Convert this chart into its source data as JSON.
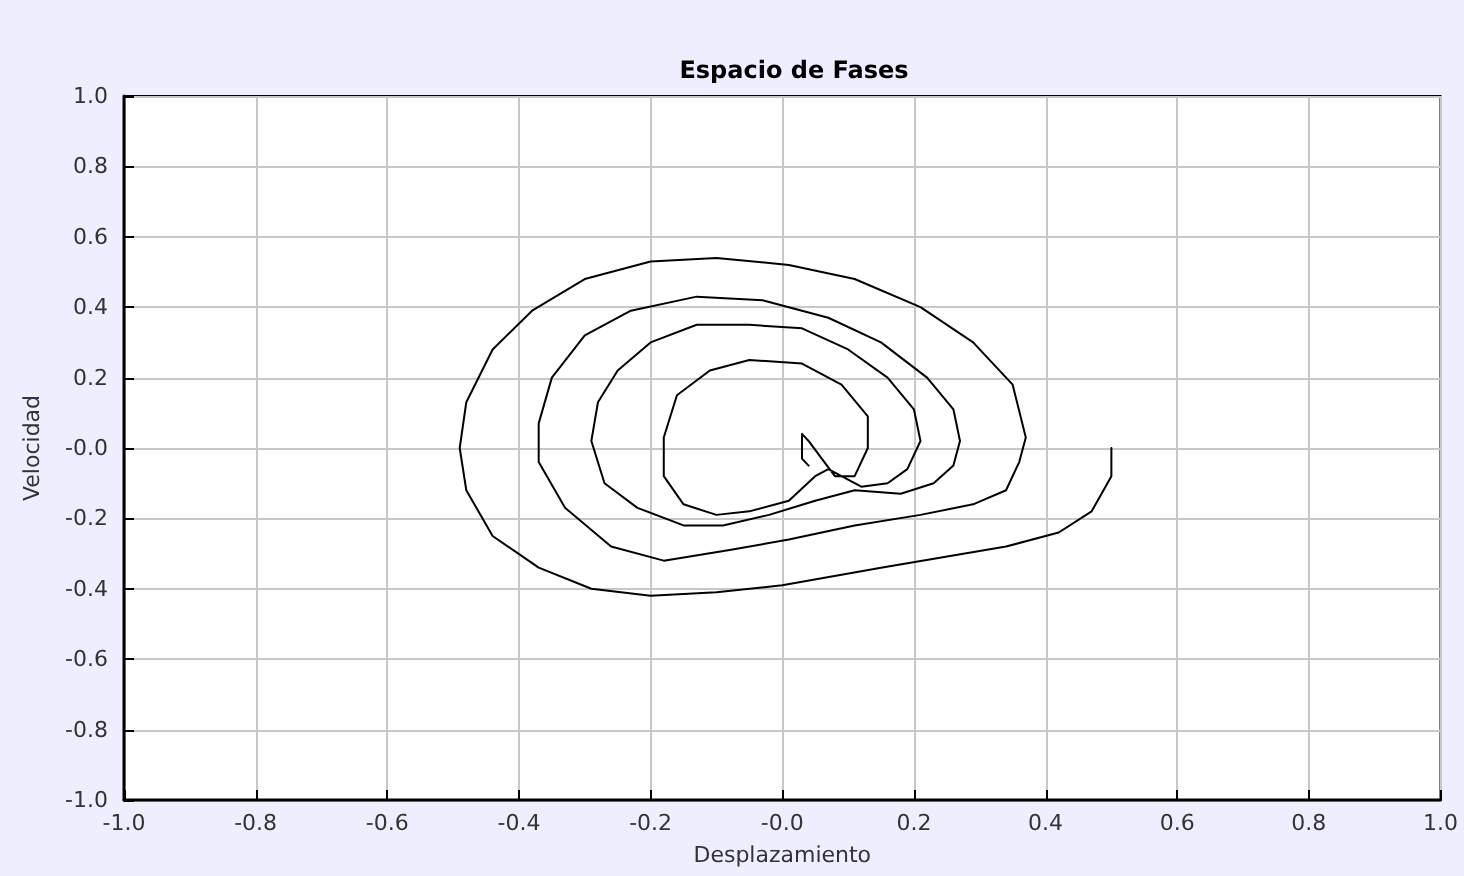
{
  "chart_data": {
    "type": "line",
    "title": "Espacio de Fases",
    "xlabel": "Desplazamiento",
    "ylabel": "Velocidad",
    "xlim": [
      -1,
      1
    ],
    "ylim": [
      -1,
      1
    ],
    "xticks": [
      {
        "value": -1,
        "label": "-1.0"
      },
      -0.8,
      -0.6,
      -0.4,
      -0.2,
      {
        "value": 0,
        "label": "-0.0"
      },
      0.2,
      0.4,
      0.6,
      0.8,
      {
        "value": 1,
        "label": "1.0"
      }
    ],
    "yticks": [
      {
        "value": -1,
        "label": "-1.0"
      },
      -0.8,
      -0.6,
      -0.4,
      -0.2,
      {
        "value": 0,
        "label": "-0.0"
      },
      0.2,
      0.4,
      0.6,
      0.8,
      {
        "value": 1,
        "label": "1.0"
      }
    ],
    "grid": true,
    "marker": "none",
    "line_style": "solid",
    "series": [
      {
        "color": "#000000",
        "x": [
          0.5,
          0.5,
          0.47,
          0.42,
          0.34,
          0.15,
          0.0,
          -0.1,
          -0.2,
          -0.29,
          -0.37,
          -0.44,
          -0.48,
          -0.49,
          -0.48,
          -0.44,
          -0.38,
          -0.3,
          -0.2,
          -0.1,
          0.01,
          0.11,
          0.21,
          0.29,
          0.35,
          0.37,
          0.36,
          0.34,
          0.29,
          0.21,
          0.11,
          0.01,
          -0.08,
          -0.18,
          -0.26,
          -0.33,
          -0.37,
          -0.37,
          -0.35,
          -0.3,
          -0.23,
          -0.13,
          -0.03,
          0.07,
          0.15,
          0.22,
          0.26,
          0.27,
          0.26,
          0.23,
          0.18,
          0.11,
          0.05,
          -0.02,
          -0.09,
          -0.15,
          -0.22,
          -0.27,
          -0.29,
          -0.28,
          -0.25,
          -0.2,
          -0.13,
          -0.05,
          0.03,
          0.1,
          0.16,
          0.2,
          0.21,
          0.19,
          0.16,
          0.12,
          0.07,
          0.05,
          0.01,
          -0.05,
          -0.1,
          -0.15,
          -0.18,
          -0.18,
          -0.16,
          -0.11,
          -0.05,
          0.03,
          0.09,
          0.13,
          0.13,
          0.11,
          0.08,
          0.06,
          0.04,
          0.03,
          0.03,
          0.03,
          0.04
        ],
        "values": [
          0.0,
          -0.08,
          -0.18,
          -0.24,
          -0.28,
          -0.34,
          -0.39,
          -0.41,
          -0.42,
          -0.4,
          -0.34,
          -0.25,
          -0.12,
          0.0,
          0.13,
          0.28,
          0.39,
          0.48,
          0.53,
          0.54,
          0.52,
          0.48,
          0.4,
          0.3,
          0.18,
          0.03,
          -0.04,
          -0.12,
          -0.16,
          -0.19,
          -0.22,
          -0.26,
          -0.29,
          -0.32,
          -0.28,
          -0.17,
          -0.04,
          0.07,
          0.2,
          0.32,
          0.39,
          0.43,
          0.42,
          0.37,
          0.3,
          0.2,
          0.11,
          0.02,
          -0.05,
          -0.1,
          -0.13,
          -0.12,
          -0.15,
          -0.19,
          -0.22,
          -0.22,
          -0.17,
          -0.1,
          0.02,
          0.13,
          0.22,
          0.3,
          0.35,
          0.35,
          0.34,
          0.28,
          0.2,
          0.11,
          0.02,
          -0.06,
          -0.1,
          -0.11,
          -0.06,
          -0.08,
          -0.15,
          -0.18,
          -0.19,
          -0.16,
          -0.08,
          0.03,
          0.15,
          0.22,
          0.25,
          0.24,
          0.18,
          0.09,
          0.0,
          -0.08,
          -0.08,
          -0.03,
          0.02,
          0.04,
          0.02,
          -0.03,
          -0.05
        ]
      }
    ]
  }
}
